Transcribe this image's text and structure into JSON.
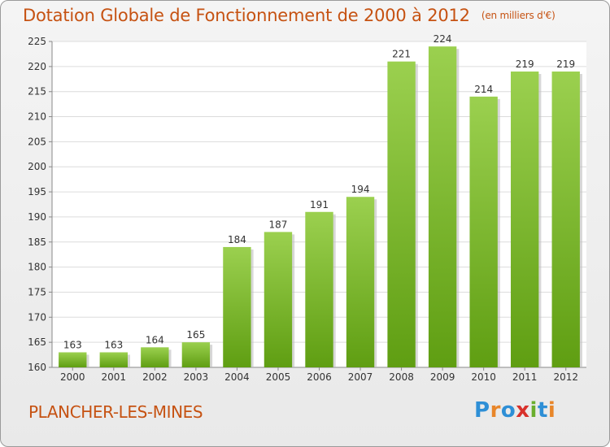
{
  "header": {
    "title": "Dotation Globale de Fonctionnement de 2000 à 2012",
    "unit": "(en milliers d'€)"
  },
  "footer": {
    "city": "PLANCHER-LES-MINES",
    "logo_letters": [
      "P",
      "r",
      "o",
      "x",
      "i",
      "t",
      "i"
    ],
    "logo_colors": [
      "#2e8fd6",
      "#e8862a",
      "#2e8fd6",
      "#d8312b",
      "#6aae2e",
      "#2e8fd6",
      "#e8862a"
    ]
  },
  "chart_data": {
    "type": "bar",
    "title": "Dotation Globale de Fonctionnement de 2000 à 2012",
    "subtitle": "(en milliers d'€)",
    "categories": [
      "2000",
      "2001",
      "2002",
      "2003",
      "2004",
      "2005",
      "2006",
      "2007",
      "2008",
      "2009",
      "2010",
      "2011",
      "2012"
    ],
    "values": [
      163,
      163,
      164,
      165,
      184,
      187,
      191,
      194,
      221,
      224,
      214,
      219,
      219
    ],
    "ylim": [
      160,
      225
    ],
    "yticks": [
      160,
      165,
      170,
      175,
      180,
      185,
      190,
      195,
      200,
      205,
      210,
      215,
      220,
      225
    ],
    "grid": true,
    "data_labels": true,
    "bar_color_top": "#9bd04f",
    "bar_color_bottom": "#5f9e12"
  }
}
